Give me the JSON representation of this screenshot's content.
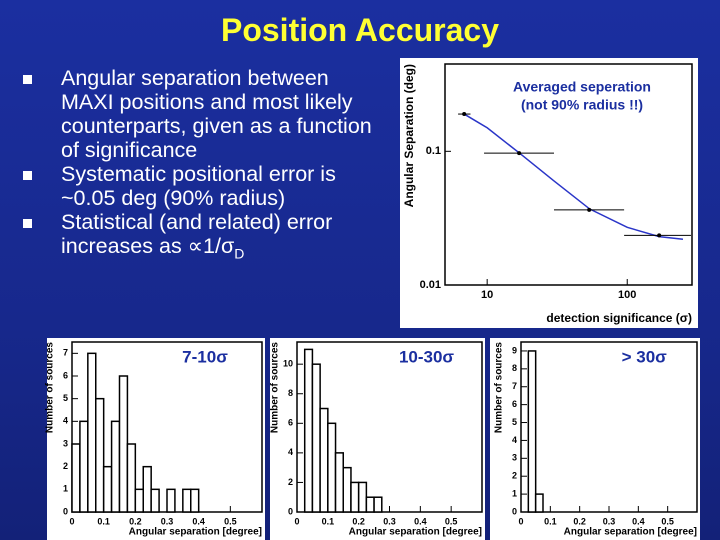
{
  "slide": {
    "title": "Position Accuracy",
    "bullets": [
      {
        "text": "Angular separation between MAXI positions and most likely counterparts, given as a function of significance"
      },
      {
        "text": "Systematic positional error is ~0.05 deg (90% radius)"
      },
      {
        "text": "Statistical (and related) error increases as ∝1/σ",
        "subscript": "D"
      }
    ]
  },
  "chart_data": [
    {
      "type": "scatter",
      "log_x": true,
      "log_y": true,
      "xlabel": "detection significance (σ)",
      "ylabel": "Angular Separation (deg)",
      "annotation": [
        "Averaged seperation",
        "(not 90% radius !!)"
      ],
      "xlim": [
        5,
        290
      ],
      "ylim": [
        0.01,
        0.45
      ],
      "xticks": [
        10,
        100
      ],
      "yticks": [
        0.01,
        0.1
      ],
      "color": "#000000",
      "x": [
        6.85,
        16.9,
        53.5,
        169
      ],
      "values": [
        0.19,
        0.097,
        0.0365,
        0.0235
      ],
      "x_err_lo": [
        6.2,
        9.5,
        30,
        95
      ],
      "x_err_hi": [
        7.6,
        30,
        95,
        285
      ],
      "curve": {
        "color": "#2a35c8",
        "x": [
          6.85,
          10,
          17,
          30,
          54,
          100,
          169,
          250
        ],
        "values": [
          0.19,
          0.15,
          0.097,
          0.06,
          0.037,
          0.027,
          0.023,
          0.022
        ]
      }
    },
    {
      "type": "histogram",
      "xlabel": "Angular separation [degree]",
      "ylabel": "Number of sources",
      "annotation": "7-10σ",
      "xlim": [
        0,
        0.6
      ],
      "ylim": [
        0,
        7.5
      ],
      "xticks": [
        0,
        0.1,
        0.2,
        0.3,
        0.4,
        0.5
      ],
      "yticks": [
        0,
        1,
        2,
        3,
        4,
        5,
        6,
        7
      ],
      "color": "#000000",
      "bins": [
        0,
        0.025,
        0.05,
        0.075,
        0.1,
        0.125,
        0.15,
        0.175,
        0.2,
        0.225,
        0.25,
        0.275,
        0.3,
        0.325,
        0.35,
        0.375,
        0.4
      ],
      "values": [
        3,
        4,
        7,
        5,
        2,
        4,
        6,
        3,
        1,
        2,
        1,
        0,
        1,
        0,
        1,
        1
      ]
    },
    {
      "type": "histogram",
      "xlabel": "Angular separation [degree]",
      "ylabel": "Number of sources",
      "annotation": "10-30σ",
      "xlim": [
        0,
        0.6
      ],
      "ylim": [
        0,
        11.5
      ],
      "xticks": [
        0,
        0.1,
        0.2,
        0.3,
        0.4,
        0.5
      ],
      "yticks": [
        0,
        2,
        4,
        6,
        8,
        10
      ],
      "color": "#000000",
      "bins": [
        0,
        0.025,
        0.05,
        0.075,
        0.1,
        0.125,
        0.15,
        0.175,
        0.2,
        0.225,
        0.25,
        0.275,
        0.3,
        0.325,
        0.35,
        0.375,
        0.4
      ],
      "values": [
        0,
        11,
        10,
        7,
        6,
        4,
        3,
        2,
        2,
        1,
        1,
        0,
        0,
        0,
        0,
        0
      ]
    },
    {
      "type": "histogram",
      "xlabel": "Angular separation [degree]",
      "ylabel": "Number of sources",
      "annotation": "> 30σ",
      "xlim": [
        0,
        0.6
      ],
      "ylim": [
        0,
        9.5
      ],
      "xticks": [
        0,
        0.1,
        0.2,
        0.3,
        0.4,
        0.5
      ],
      "yticks": [
        0,
        1,
        2,
        3,
        4,
        5,
        6,
        7,
        8,
        9
      ],
      "color": "#000000",
      "bins": [
        0,
        0.025,
        0.05,
        0.075,
        0.1,
        0.125,
        0.15,
        0.175,
        0.2,
        0.225,
        0.25,
        0.275,
        0.3,
        0.325,
        0.35,
        0.375,
        0.4
      ],
      "values": [
        0,
        9,
        1,
        0,
        0,
        0,
        0,
        0,
        0,
        0,
        0,
        0,
        0,
        0,
        0,
        0
      ]
    }
  ]
}
